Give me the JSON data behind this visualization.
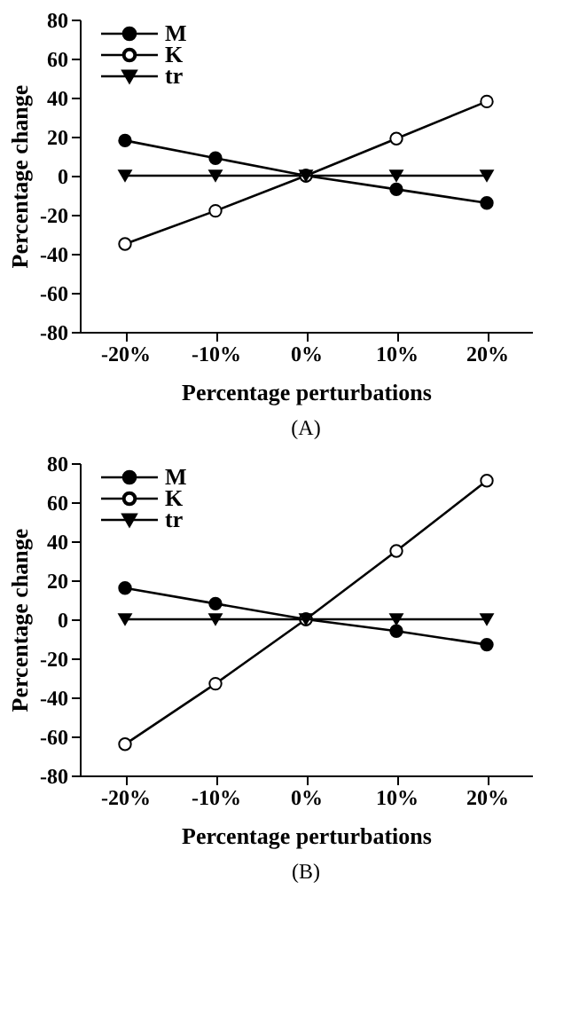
{
  "chart_data": [
    {
      "type": "line",
      "categories": [
        "-20%",
        "-10%",
        "0%",
        "10%",
        "20%"
      ],
      "xlabel": "Percentage perturbations",
      "ylabel": "Percentage change",
      "ylim": [
        -80,
        80
      ],
      "yticks": [
        -80,
        -60,
        -40,
        -20,
        0,
        20,
        40,
        60,
        80
      ],
      "grid": false,
      "legend": "top left",
      "line_style": "solid",
      "annotations": [
        "(A)"
      ],
      "series": [
        {
          "name": "M",
          "color": "#000000",
          "marker": "circle",
          "values": [
            18,
            9,
            0,
            -7,
            -14
          ]
        },
        {
          "name": "K",
          "color": "#000000",
          "marker": "circle",
          "values": [
            -35,
            -18,
            0,
            19,
            38
          ]
        },
        {
          "name": "tr",
          "color": "#000000",
          "marker": "triangle",
          "values": [
            0,
            0,
            0,
            0,
            0
          ]
        }
      ]
    },
    {
      "type": "line",
      "categories": [
        "-20%",
        "-10%",
        "0%",
        "10%",
        "20%"
      ],
      "xlabel": "Percentage perturbations",
      "ylabel": "Percentage change",
      "ylim": [
        -80,
        80
      ],
      "yticks": [
        -80,
        -60,
        -40,
        -20,
        0,
        20,
        40,
        60,
        80
      ],
      "grid": false,
      "legend": "top left",
      "line_style": "solid",
      "annotations": [
        "(B)"
      ],
      "series": [
        {
          "name": "M",
          "color": "#000000",
          "marker": "circle",
          "values": [
            16,
            8,
            0,
            -6,
            -13
          ]
        },
        {
          "name": "K",
          "color": "#000000",
          "marker": "circle",
          "values": [
            -64,
            -33,
            0,
            35,
            71
          ]
        },
        {
          "name": "tr",
          "color": "#000000",
          "marker": "triangle",
          "values": [
            0,
            0,
            0,
            0,
            0
          ]
        }
      ]
    }
  ]
}
